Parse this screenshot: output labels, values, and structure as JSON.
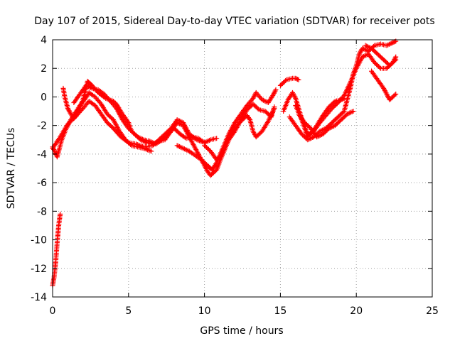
{
  "chart_data": {
    "type": "scatter",
    "title": "Day 107 of 2015, Sidereal Day-to-day VTEC variation (SDTVAR) for receiver pots",
    "xlabel": "GPS time / hours",
    "ylabel": "SDTVAR / TECUs",
    "xlim": [
      0,
      25
    ],
    "ylim": [
      -14,
      4
    ],
    "xticks": [
      "0",
      "5",
      "10",
      "15",
      "20",
      "25"
    ],
    "yticks": [
      "-14",
      "-12",
      "-10",
      "-8",
      "-6",
      "-4",
      "-2",
      "0",
      "2",
      "4"
    ],
    "grid": true,
    "marker": "+",
    "color": "#ff0000",
    "tracks": [
      {
        "points": [
          [
            0.0,
            -13.2
          ],
          [
            0.1,
            -12.6
          ],
          [
            0.2,
            -11.6
          ],
          [
            0.3,
            -10.2
          ],
          [
            0.4,
            -9.0
          ],
          [
            0.5,
            -8.2
          ]
        ]
      },
      {
        "points": [
          [
            0.0,
            -3.5
          ],
          [
            0.3,
            -4.2
          ],
          [
            0.6,
            -3.0
          ],
          [
            0.9,
            -2.2
          ],
          [
            1.2,
            -1.6
          ],
          [
            1.5,
            -1.1
          ],
          [
            1.8,
            -0.6
          ],
          [
            2.1,
            -0.2
          ],
          [
            2.4,
            0.3
          ],
          [
            2.8,
            0.0
          ],
          [
            3.2,
            -0.5
          ],
          [
            3.6,
            -1.2
          ],
          [
            4.0,
            -1.6
          ],
          [
            4.4,
            -2.4
          ],
          [
            4.8,
            -3.0
          ],
          [
            5.2,
            -3.4
          ],
          [
            5.6,
            -3.5
          ],
          [
            6.0,
            -3.6
          ],
          [
            6.5,
            -3.8
          ]
        ]
      },
      {
        "points": [
          [
            0.0,
            -3.6
          ],
          [
            0.5,
            -2.8
          ],
          [
            1.0,
            -1.9
          ],
          [
            1.5,
            -1.4
          ],
          [
            2.0,
            -0.8
          ],
          [
            2.4,
            -0.3
          ],
          [
            2.8,
            -0.6
          ],
          [
            3.2,
            -1.2
          ],
          [
            3.6,
            -1.8
          ],
          [
            4.0,
            -2.2
          ],
          [
            4.5,
            -2.8
          ],
          [
            5.0,
            -3.2
          ],
          [
            5.5,
            -3.3
          ],
          [
            6.0,
            -3.5
          ],
          [
            6.6,
            -3.4
          ],
          [
            7.2,
            -2.8
          ],
          [
            7.8,
            -2.2
          ],
          [
            8.2,
            -1.6
          ],
          [
            8.6,
            -1.8
          ],
          [
            9.0,
            -2.6
          ],
          [
            9.5,
            -3.0
          ],
          [
            10.0,
            -3.2
          ]
        ]
      },
      {
        "points": [
          [
            0.7,
            0.6
          ],
          [
            0.8,
            0.0
          ],
          [
            1.0,
            -0.8
          ],
          [
            1.2,
            -1.2
          ],
          [
            1.4,
            -1.5
          ],
          [
            1.6,
            -1.2
          ],
          [
            1.8,
            -0.7
          ],
          [
            2.0,
            -0.2
          ],
          [
            2.2,
            0.6
          ],
          [
            2.3,
            1.1
          ],
          [
            2.6,
            0.8
          ],
          [
            3.0,
            0.3
          ],
          [
            3.5,
            -0.1
          ],
          [
            4.0,
            -0.3
          ],
          [
            4.2,
            -0.5
          ],
          [
            4.6,
            -1.2
          ],
          [
            5.0,
            -1.8
          ],
          [
            5.2,
            -2.4
          ],
          [
            5.6,
            -2.8
          ],
          [
            6.0,
            -3.0
          ],
          [
            6.4,
            -3.1
          ],
          [
            6.8,
            -3.3
          ],
          [
            7.2,
            -3.0
          ],
          [
            7.6,
            -2.6
          ],
          [
            8.0,
            -2.2
          ],
          [
            8.4,
            -2.6
          ],
          [
            8.8,
            -2.9
          ],
          [
            9.2,
            -2.8
          ],
          [
            9.6,
            -2.9
          ],
          [
            10.0,
            -3.2
          ],
          [
            10.4,
            -3.0
          ],
          [
            10.8,
            -2.9
          ]
        ]
      },
      {
        "points": [
          [
            1.4,
            -0.4
          ],
          [
            1.8,
            0.2
          ],
          [
            2.2,
            0.8
          ],
          [
            2.6,
            0.6
          ],
          [
            3.0,
            0.5
          ],
          [
            3.4,
            0.2
          ],
          [
            3.8,
            -0.3
          ],
          [
            4.2,
            -0.8
          ],
          [
            4.6,
            -1.6
          ],
          [
            5.0,
            -2.2
          ],
          [
            5.4,
            -2.6
          ],
          [
            5.8,
            -3.0
          ],
          [
            6.2,
            -3.2
          ],
          [
            6.6,
            -3.3
          ],
          [
            7.0,
            -3.1
          ],
          [
            7.4,
            -3.0
          ],
          [
            7.8,
            -2.4
          ],
          [
            8.2,
            -1.8
          ],
          [
            8.6,
            -2.0
          ],
          [
            9.0,
            -2.8
          ],
          [
            9.4,
            -3.6
          ],
          [
            9.8,
            -4.4
          ],
          [
            10.2,
            -5.2
          ],
          [
            10.4,
            -5.5
          ],
          [
            10.8,
            -5.1
          ],
          [
            11.2,
            -4.0
          ],
          [
            11.6,
            -3.0
          ],
          [
            12.0,
            -2.4
          ],
          [
            12.4,
            -1.6
          ],
          [
            12.8,
            -0.9
          ],
          [
            13.2,
            -0.5
          ],
          [
            13.6,
            -0.9
          ],
          [
            14.0,
            -1.0
          ],
          [
            14.4,
            -1.4
          ],
          [
            14.6,
            -0.7
          ]
        ]
      },
      {
        "points": [
          [
            8.2,
            -3.4
          ],
          [
            8.6,
            -3.6
          ],
          [
            9.0,
            -3.8
          ],
          [
            9.4,
            -4.1
          ],
          [
            9.8,
            -4.4
          ],
          [
            10.2,
            -4.8
          ],
          [
            10.5,
            -5.1
          ],
          [
            10.8,
            -4.6
          ],
          [
            11.2,
            -3.6
          ],
          [
            11.6,
            -2.6
          ],
          [
            12.0,
            -1.8
          ],
          [
            12.4,
            -1.2
          ],
          [
            12.8,
            -0.6
          ],
          [
            13.2,
            -0.1
          ],
          [
            13.4,
            0.3
          ],
          [
            13.8,
            -0.2
          ],
          [
            14.2,
            -0.4
          ],
          [
            14.5,
            0.1
          ],
          [
            14.7,
            0.5
          ]
        ]
      },
      {
        "points": [
          [
            10.0,
            -3.4
          ],
          [
            10.4,
            -3.8
          ],
          [
            10.8,
            -4.4
          ],
          [
            11.2,
            -4.0
          ],
          [
            11.6,
            -3.0
          ],
          [
            12.0,
            -2.2
          ],
          [
            12.4,
            -1.7
          ],
          [
            12.8,
            -1.3
          ],
          [
            13.0,
            -1.6
          ],
          [
            13.2,
            -2.4
          ],
          [
            13.4,
            -2.8
          ],
          [
            13.8,
            -2.4
          ],
          [
            14.2,
            -1.7
          ],
          [
            14.6,
            -0.8
          ]
        ]
      },
      {
        "points": [
          [
            15.0,
            0.8
          ],
          [
            15.4,
            1.2
          ],
          [
            15.8,
            1.3
          ],
          [
            16.0,
            1.3
          ],
          [
            16.2,
            1.2
          ]
        ]
      },
      {
        "points": [
          [
            15.2,
            -1.0
          ],
          [
            15.5,
            -0.2
          ],
          [
            15.8,
            0.3
          ],
          [
            16.0,
            -0.1
          ],
          [
            16.2,
            -0.8
          ],
          [
            16.4,
            -1.5
          ],
          [
            16.6,
            -2.2
          ],
          [
            16.8,
            -2.8
          ],
          [
            17.0,
            -2.6
          ],
          [
            17.4,
            -2.0
          ],
          [
            17.8,
            -1.3
          ],
          [
            18.2,
            -0.7
          ],
          [
            18.6,
            -0.3
          ],
          [
            19.0,
            -0.2
          ],
          [
            19.2,
            -0.1
          ]
        ]
      },
      {
        "points": [
          [
            16.0,
            -0.6
          ],
          [
            16.4,
            -1.6
          ],
          [
            16.8,
            -2.6
          ],
          [
            17.2,
            -2.4
          ],
          [
            17.6,
            -1.8
          ],
          [
            18.0,
            -1.3
          ],
          [
            18.4,
            -0.8
          ],
          [
            18.8,
            -0.4
          ],
          [
            19.2,
            0.1
          ],
          [
            19.6,
            1.0
          ],
          [
            20.0,
            2.0
          ],
          [
            20.4,
            2.8
          ],
          [
            20.8,
            3.0
          ],
          [
            21.2,
            2.4
          ],
          [
            21.6,
            2.0
          ],
          [
            22.0,
            2.0
          ],
          [
            22.4,
            2.4
          ],
          [
            22.6,
            2.8
          ]
        ]
      },
      {
        "points": [
          [
            16.2,
            -1.2
          ],
          [
            16.6,
            -1.8
          ],
          [
            17.0,
            -2.2
          ],
          [
            17.4,
            -2.8
          ],
          [
            17.8,
            -2.6
          ],
          [
            18.2,
            -2.2
          ],
          [
            18.6,
            -2.0
          ],
          [
            19.0,
            -1.6
          ],
          [
            19.4,
            -1.2
          ],
          [
            19.8,
            -1.0
          ]
        ]
      },
      {
        "points": [
          [
            15.6,
            -1.4
          ],
          [
            16.0,
            -2.0
          ],
          [
            16.4,
            -2.6
          ],
          [
            16.8,
            -3.0
          ],
          [
            17.2,
            -2.8
          ],
          [
            17.6,
            -2.4
          ],
          [
            18.0,
            -2.2
          ],
          [
            18.4,
            -1.8
          ],
          [
            18.8,
            -1.4
          ],
          [
            19.2,
            -1.0
          ],
          [
            19.4,
            -0.2
          ],
          [
            19.6,
            0.6
          ],
          [
            19.8,
            1.6
          ],
          [
            20.0,
            2.2
          ],
          [
            20.2,
            3.0
          ],
          [
            20.4,
            3.4
          ],
          [
            20.8,
            3.2
          ],
          [
            21.2,
            3.6
          ],
          [
            21.6,
            3.7
          ],
          [
            22.0,
            3.6
          ],
          [
            22.4,
            3.8
          ],
          [
            22.6,
            3.9
          ]
        ]
      },
      {
        "points": [
          [
            21.0,
            1.8
          ],
          [
            21.4,
            1.2
          ],
          [
            21.8,
            0.6
          ],
          [
            22.0,
            0.2
          ],
          [
            22.2,
            -0.2
          ],
          [
            22.4,
            0.0
          ],
          [
            22.6,
            0.2
          ]
        ]
      },
      {
        "points": [
          [
            20.6,
            3.6
          ],
          [
            21.0,
            3.4
          ],
          [
            21.4,
            3.0
          ],
          [
            21.8,
            2.6
          ],
          [
            22.2,
            2.2
          ],
          [
            22.6,
            2.6
          ]
        ]
      }
    ]
  }
}
